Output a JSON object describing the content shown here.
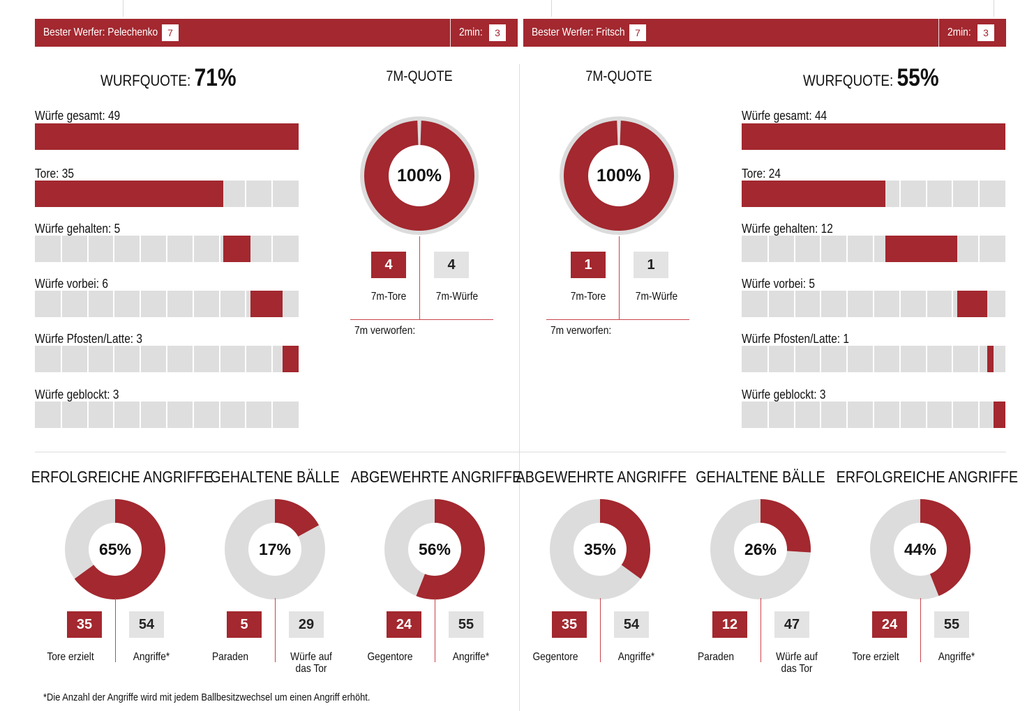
{
  "colors": {
    "accent": "#a3282f",
    "track": "#dedede",
    "box_grey": "#e3e3e3"
  },
  "banners": {
    "left": {
      "best_label": "Bester Werfer: Pelechenko",
      "best_value": "7",
      "twomin_label": "2min:",
      "twomin_value": "3"
    },
    "right": {
      "best_label": "Bester Werfer: Fritsch",
      "best_value": "7",
      "twomin_label": "2min:",
      "twomin_value": "3"
    }
  },
  "chart_data": [
    {
      "type": "bar",
      "title": "WURFQUOTE:",
      "quote": "71%",
      "categories": [
        "Würfe gesamt: 49",
        "Tore: 35",
        "Würfe gehalten: 5",
        "Würfe vorbei: 6",
        "Würfe Pfosten/Latte: 3",
        "Würfe geblockt: 3"
      ],
      "values": [
        49,
        35,
        5,
        6,
        3,
        3
      ],
      "total": 49
    },
    {
      "type": "pie",
      "title": "7M-QUOTE",
      "percent_label": "100%",
      "percent": 100,
      "made": "4",
      "attempts": "4",
      "made_label": "7m-Tore",
      "attempts_label": "7m-Würfe",
      "missed_label": "7m verworfen:"
    },
    {
      "type": "pie",
      "title": "7M-QUOTE",
      "percent_label": "100%",
      "percent": 100,
      "made": "1",
      "attempts": "1",
      "made_label": "7m-Tore",
      "attempts_label": "7m-Würfe",
      "missed_label": "7m verworfen:"
    },
    {
      "type": "bar",
      "title": "WURFQUOTE:",
      "quote": "55%",
      "categories": [
        "Würfe gesamt: 44",
        "Tore: 24",
        "Würfe gehalten: 12",
        "Würfe vorbei: 5",
        "Würfe Pfosten/Latte: 1",
        "Würfe geblockt: 3"
      ],
      "values": [
        44,
        24,
        12,
        5,
        1,
        3
      ],
      "total": 44
    },
    {
      "type": "pie",
      "panels": [
        {
          "title": "ERFOLGREICHE ANGRIFFE",
          "percent": 65,
          "label": "65%",
          "a": "35",
          "b": "54",
          "a_label": "Tore erzielt",
          "b_label": "Angriffe*"
        },
        {
          "title": "GEHALTENE BÄLLE",
          "percent": 17,
          "label": "17%",
          "a": "5",
          "b": "29",
          "a_label": "Paraden",
          "b_label": "Würfe auf das Tor"
        },
        {
          "title": "ABGEWEHRTE ANGRIFFE",
          "percent": 56,
          "label": "56%",
          "a": "24",
          "b": "55",
          "a_label": "Gegentore",
          "b_label": "Angriffe*"
        },
        {
          "title": "ABGEWEHRTE ANGRIFFE",
          "percent": 35,
          "label": "35%",
          "a": "35",
          "b": "54",
          "a_label": "Gegentore",
          "b_label": "Angriffe*"
        },
        {
          "title": "GEHALTENE BÄLLE",
          "percent": 26,
          "label": "26%",
          "a": "12",
          "b": "47",
          "a_label": "Paraden",
          "b_label": "Würfe auf das Tor"
        },
        {
          "title": "ERFOLGREICHE ANGRIFFE",
          "percent": 44,
          "label": "44%",
          "a": "24",
          "b": "55",
          "a_label": "Tore erzielt",
          "b_label": "Angriffe*"
        }
      ]
    }
  ],
  "footnote": "*Die Anzahl der Angriffe wird mit jedem Ballbesitzwechsel um einen Angriff erhöht."
}
